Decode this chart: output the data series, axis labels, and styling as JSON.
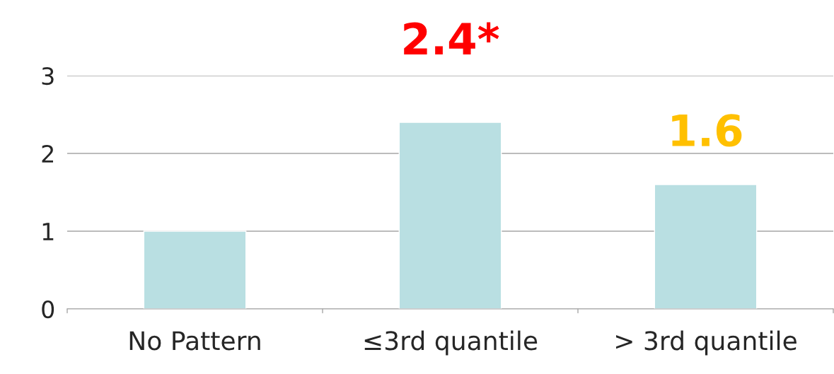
{
  "chart_data": {
    "type": "bar",
    "categories": [
      "No Pattern",
      "≤3rd quantile",
      "> 3rd quantile"
    ],
    "values": [
      1,
      2.4,
      1.6
    ],
    "value_labels": [
      null,
      "2.4*",
      "1.6"
    ],
    "color": "#b9dfe2",
    "ylim": [
      0,
      3
    ],
    "yticks": [
      0,
      1,
      2,
      3
    ],
    "grid": "y"
  }
}
